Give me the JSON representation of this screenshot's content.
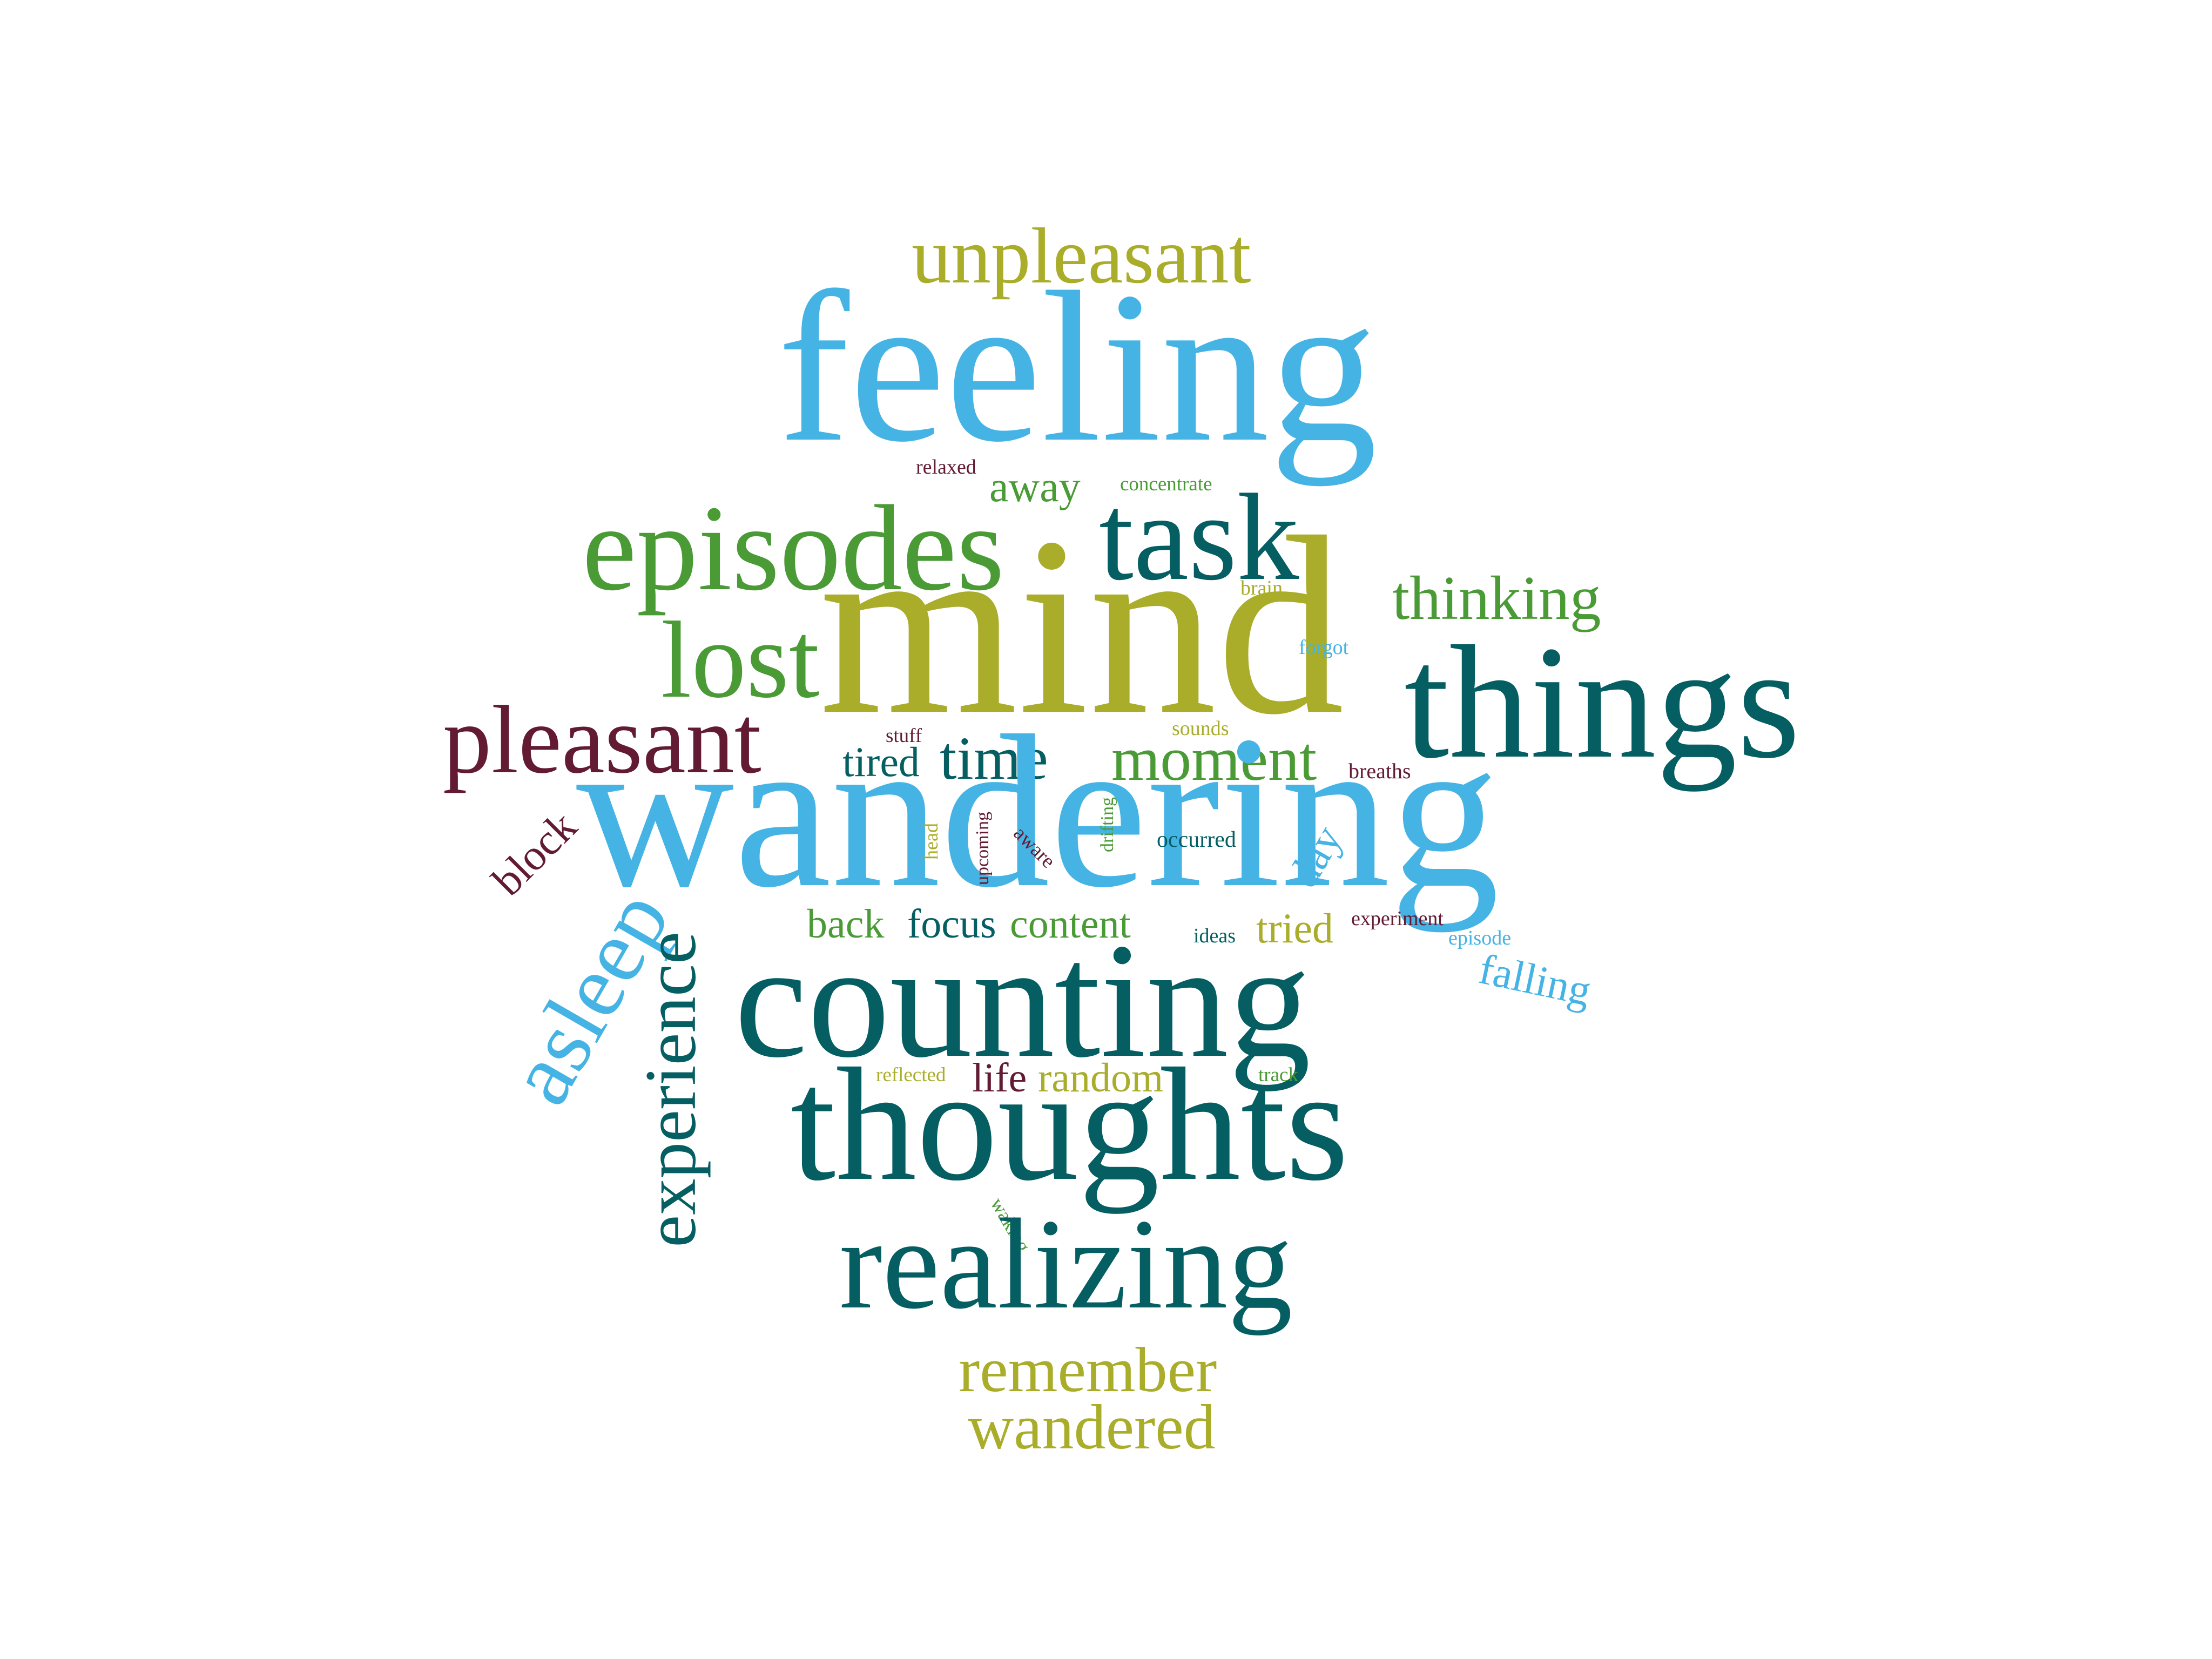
{
  "colors": {
    "sky": "#45b4e5",
    "olive": "#a9ad2a",
    "green": "#4a9b36",
    "teal": "#045e62",
    "maroon": "#621b33",
    "background": "#ffffff"
  },
  "words": [
    {
      "text": "unpleasant",
      "color": "olive",
      "orientation": "horizontal"
    },
    {
      "text": "feeling",
      "color": "sky",
      "orientation": "horizontal"
    },
    {
      "text": "relaxed",
      "color": "maroon",
      "orientation": "horizontal"
    },
    {
      "text": "away",
      "color": "green",
      "orientation": "horizontal"
    },
    {
      "text": "concentrate",
      "color": "green",
      "orientation": "horizontal"
    },
    {
      "text": "episodes",
      "color": "green",
      "orientation": "horizontal"
    },
    {
      "text": "task",
      "color": "teal",
      "orientation": "horizontal"
    },
    {
      "text": "mind",
      "color": "olive",
      "orientation": "horizontal"
    },
    {
      "text": "brain",
      "color": "olive",
      "orientation": "horizontal"
    },
    {
      "text": "thinking",
      "color": "green",
      "orientation": "horizontal"
    },
    {
      "text": "forgot",
      "color": "sky",
      "orientation": "horizontal"
    },
    {
      "text": "lost",
      "color": "green",
      "orientation": "horizontal"
    },
    {
      "text": "things",
      "color": "teal",
      "orientation": "horizontal"
    },
    {
      "text": "pleasant",
      "color": "maroon",
      "orientation": "horizontal"
    },
    {
      "text": "stuff",
      "color": "maroon",
      "orientation": "horizontal"
    },
    {
      "text": "sounds",
      "color": "olive",
      "orientation": "horizontal"
    },
    {
      "text": "tired",
      "color": "teal",
      "orientation": "horizontal"
    },
    {
      "text": "time",
      "color": "teal",
      "orientation": "horizontal"
    },
    {
      "text": "moment",
      "color": "green",
      "orientation": "horizontal"
    },
    {
      "text": "breaths",
      "color": "maroon",
      "orientation": "horizontal"
    },
    {
      "text": "wandering",
      "color": "sky",
      "orientation": "horizontal"
    },
    {
      "text": "block",
      "color": "maroon",
      "orientation": "diagonal-up"
    },
    {
      "text": "head",
      "color": "olive",
      "orientation": "vertical-up"
    },
    {
      "text": "upcoming",
      "color": "maroon",
      "orientation": "vertical-up"
    },
    {
      "text": "aware",
      "color": "maroon",
      "orientation": "diagonal-down"
    },
    {
      "text": "drifting",
      "color": "green",
      "orientation": "vertical-up"
    },
    {
      "text": "occurred",
      "color": "teal",
      "orientation": "horizontal"
    },
    {
      "text": "day",
      "color": "sky",
      "orientation": "diagonal-up"
    },
    {
      "text": "asleep",
      "color": "sky",
      "orientation": "diagonal-up"
    },
    {
      "text": "experience",
      "color": "teal",
      "orientation": "vertical-up"
    },
    {
      "text": "back",
      "color": "green",
      "orientation": "horizontal"
    },
    {
      "text": "focus",
      "color": "teal",
      "orientation": "horizontal"
    },
    {
      "text": "content",
      "color": "green",
      "orientation": "horizontal"
    },
    {
      "text": "ideas",
      "color": "teal",
      "orientation": "horizontal"
    },
    {
      "text": "tried",
      "color": "olive",
      "orientation": "horizontal"
    },
    {
      "text": "experiment",
      "color": "maroon",
      "orientation": "horizontal"
    },
    {
      "text": "episode",
      "color": "sky",
      "orientation": "horizontal"
    },
    {
      "text": "falling",
      "color": "sky",
      "orientation": "slight-tilt"
    },
    {
      "text": "counting",
      "color": "teal",
      "orientation": "horizontal"
    },
    {
      "text": "reflected",
      "color": "olive",
      "orientation": "horizontal"
    },
    {
      "text": "life",
      "color": "maroon",
      "orientation": "horizontal"
    },
    {
      "text": "random",
      "color": "olive",
      "orientation": "horizontal"
    },
    {
      "text": "track",
      "color": "green",
      "orientation": "horizontal"
    },
    {
      "text": "thoughts",
      "color": "teal",
      "orientation": "horizontal"
    },
    {
      "text": "waking",
      "color": "green",
      "orientation": "diagonal-down"
    },
    {
      "text": "realizing",
      "color": "teal",
      "orientation": "horizontal"
    },
    {
      "text": "remember",
      "color": "olive",
      "orientation": "horizontal"
    },
    {
      "text": "wandered",
      "color": "olive",
      "orientation": "horizontal"
    }
  ]
}
